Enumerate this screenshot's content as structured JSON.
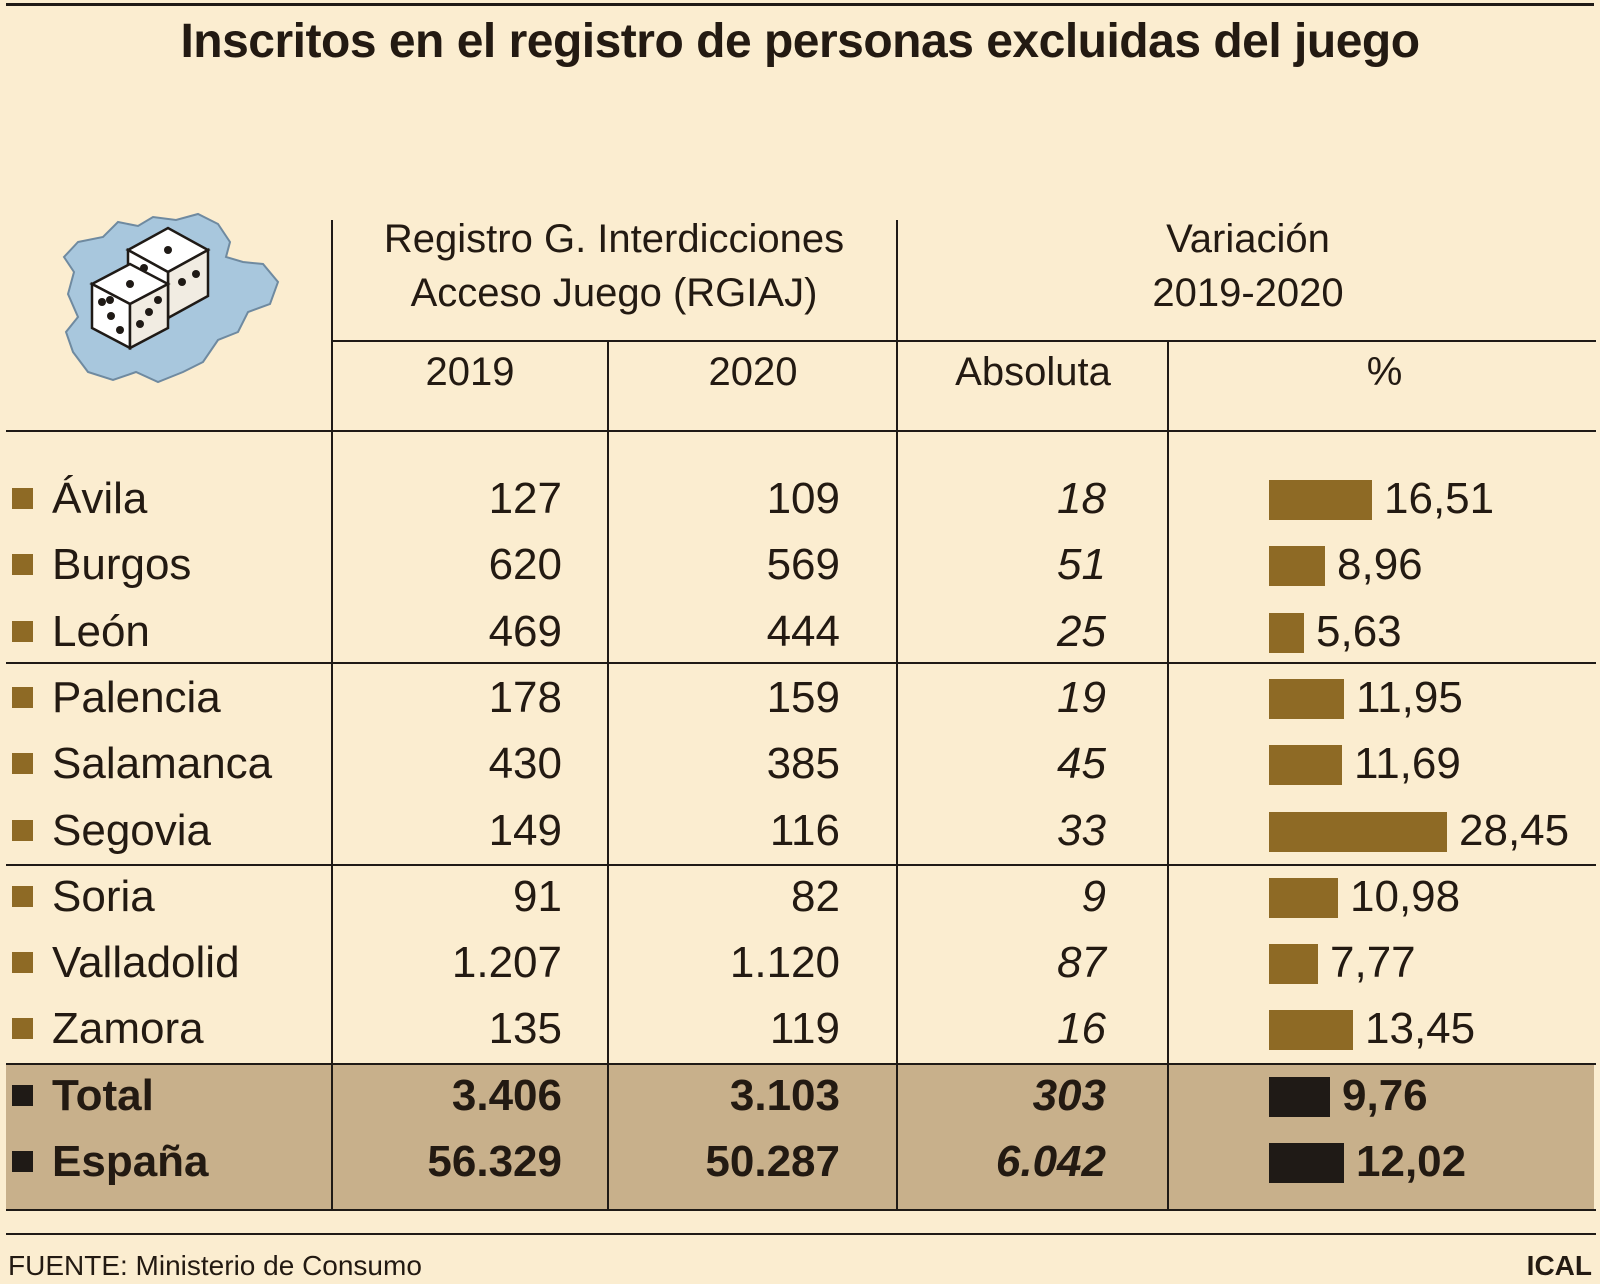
{
  "title": "Inscritos en el registro de personas excluidas del juego",
  "headers": {
    "group1_line1": "Registro G. Interdicciones",
    "group1_line2": "Acceso Juego (RGIAJ)",
    "group2_line1": "Variación",
    "group2_line2": "2019-2020",
    "col_2019": "2019",
    "col_2020": "2020",
    "col_abs": "Absoluta",
    "col_pct": "%"
  },
  "colors": {
    "background": "#fbedd0",
    "bar": "#8e6a25",
    "total_bar": "#1f1a16",
    "total_band": "#c8b08b",
    "map": "#a8c7dd"
  },
  "chart_data": {
    "type": "table",
    "title": "Inscritos en el registro de personas excluidas del juego",
    "columns": [
      "2019",
      "2020",
      "Absoluta",
      "%"
    ],
    "pct_scale_max": 28.45,
    "rows": [
      {
        "name": "Ávila",
        "y2019": "127",
        "y2020": "109",
        "abs": "18",
        "pct": "16,51",
        "pct_value": 16.51
      },
      {
        "name": "Burgos",
        "y2019": "620",
        "y2020": "569",
        "abs": "51",
        "pct": "8,96",
        "pct_value": 8.96
      },
      {
        "name": "León",
        "y2019": "469",
        "y2020": "444",
        "abs": "25",
        "pct": "5,63",
        "pct_value": 5.63
      },
      {
        "name": "Palencia",
        "y2019": "178",
        "y2020": "159",
        "abs": "19",
        "pct": "11,95",
        "pct_value": 11.95
      },
      {
        "name": "Salamanca",
        "y2019": "430",
        "y2020": "385",
        "abs": "45",
        "pct": "11,69",
        "pct_value": 11.69
      },
      {
        "name": "Segovia",
        "y2019": "149",
        "y2020": "116",
        "abs": "33",
        "pct": "28,45",
        "pct_value": 28.45
      },
      {
        "name": "Soria",
        "y2019": "91",
        "y2020": "82",
        "abs": "9",
        "pct": "10,98",
        "pct_value": 10.98
      },
      {
        "name": "Valladolid",
        "y2019": "1.207",
        "y2020": "1.120",
        "abs": "87",
        "pct": "7,77",
        "pct_value": 7.77
      },
      {
        "name": "Zamora",
        "y2019": "135",
        "y2020": "119",
        "abs": "16",
        "pct": "13,45",
        "pct_value": 13.45
      }
    ],
    "totals": [
      {
        "name": "Total",
        "y2019": "3.406",
        "y2020": "3.103",
        "abs": "303",
        "pct": "9,76",
        "pct_value": 9.76
      },
      {
        "name": "España",
        "y2019": "56.329",
        "y2020": "50.287",
        "abs": "6.042",
        "pct": "12,02",
        "pct_value": 12.02
      }
    ]
  },
  "footer": {
    "source": "FUENTE: Ministerio de Consumo",
    "brand": "ICAL"
  }
}
